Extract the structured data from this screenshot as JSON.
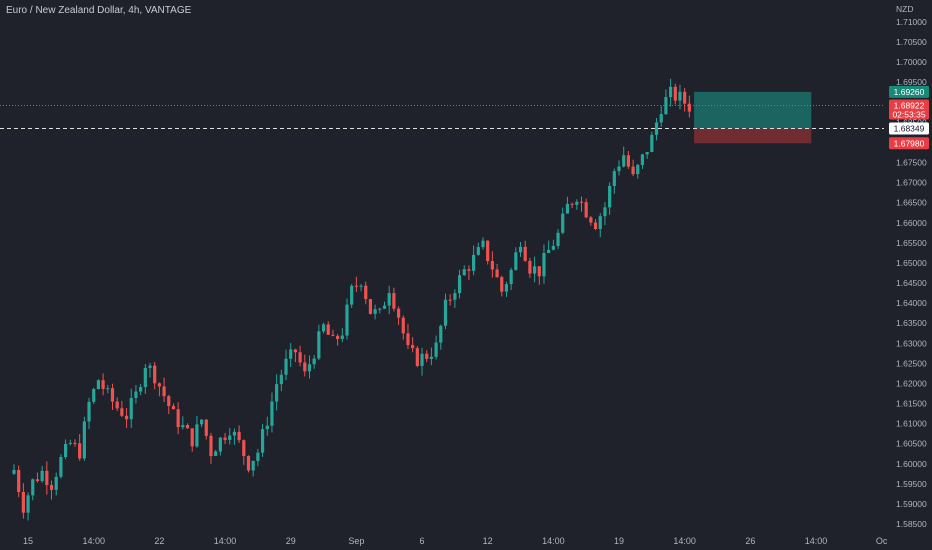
{
  "header": {
    "symbol_title": "Euro / New Zealand Dollar, 4h, VANTAGE"
  },
  "chart_data": {
    "type": "candlestick",
    "title": "Euro / New Zealand Dollar, 4h, VANTAGE",
    "currency": "NZD",
    "y_ticks": [
      1.585,
      1.59,
      1.595,
      1.6,
      1.605,
      1.61,
      1.615,
      1.62,
      1.625,
      1.63,
      1.635,
      1.64,
      1.645,
      1.65,
      1.655,
      1.66,
      1.665,
      1.67,
      1.675,
      1.68,
      1.685,
      1.69,
      1.695,
      1.7,
      1.705,
      1.71
    ],
    "y_tick_labels": [
      "1.58500",
      "1.59000",
      "1.59500",
      "1.60000",
      "1.60500",
      "1.61000",
      "1.61500",
      "1.62000",
      "1.62500",
      "1.63000",
      "1.63500",
      "1.64000",
      "1.64500",
      "1.65000",
      "1.65500",
      "1.66000",
      "1.66500",
      "1.67000",
      "1.67500",
      "1.68000",
      "1.68500",
      "1.69000",
      "1.69500",
      "1.70000",
      "1.70500",
      "1.71000"
    ],
    "x_tick_labels": [
      "15",
      "14:00",
      "22",
      "14:00",
      "29",
      "Sep",
      "6",
      "12",
      "14:00",
      "19",
      "14:00",
      "26",
      "14:00",
      "Oc"
    ],
    "x_tick_bars": [
      3,
      17,
      31,
      45,
      59,
      73,
      87,
      101,
      115,
      129,
      143,
      157,
      171,
      185
    ],
    "total_bars": 186,
    "close_path": [
      [
        0,
        1.5985
      ],
      [
        2,
        1.5895
      ],
      [
        4,
        1.5955
      ],
      [
        6,
        1.598
      ],
      [
        8,
        1.595
      ],
      [
        10,
        1.601
      ],
      [
        12,
        1.605
      ],
      [
        14,
        1.603
      ],
      [
        16,
        1.615
      ],
      [
        18,
        1.621
      ],
      [
        20,
        1.617
      ],
      [
        22,
        1.614
      ],
      [
        24,
        1.612
      ],
      [
        26,
        1.617
      ],
      [
        28,
        1.625
      ],
      [
        30,
        1.622
      ],
      [
        32,
        1.617
      ],
      [
        34,
        1.612
      ],
      [
        36,
        1.609
      ],
      [
        38,
        1.606
      ],
      [
        40,
        1.611
      ],
      [
        42,
        1.603
      ],
      [
        44,
        1.606
      ],
      [
        46,
        1.609
      ],
      [
        48,
        1.605
      ],
      [
        50,
        1.6
      ],
      [
        52,
        1.603
      ],
      [
        54,
        1.611
      ],
      [
        56,
        1.62
      ],
      [
        58,
        1.625
      ],
      [
        60,
        1.628
      ],
      [
        62,
        1.622
      ],
      [
        64,
        1.628
      ],
      [
        66,
        1.634
      ],
      [
        68,
        1.63
      ],
      [
        70,
        1.633
      ],
      [
        72,
        1.643
      ],
      [
        74,
        1.646
      ],
      [
        76,
        1.638
      ],
      [
        78,
        1.637
      ],
      [
        80,
        1.644
      ],
      [
        82,
        1.637
      ],
      [
        84,
        1.628
      ],
      [
        86,
        1.626
      ],
      [
        88,
        1.627
      ],
      [
        90,
        1.629
      ],
      [
        92,
        1.639
      ],
      [
        94,
        1.644
      ],
      [
        96,
        1.648
      ],
      [
        98,
        1.651
      ],
      [
        100,
        1.654
      ],
      [
        102,
        1.649
      ],
      [
        104,
        1.643
      ],
      [
        106,
        1.648
      ],
      [
        108,
        1.656
      ],
      [
        110,
        1.649
      ],
      [
        112,
        1.648
      ],
      [
        114,
        1.653
      ],
      [
        116,
        1.657
      ],
      [
        118,
        1.664
      ],
      [
        120,
        1.667
      ],
      [
        122,
        1.663
      ],
      [
        124,
        1.66
      ],
      [
        126,
        1.664
      ],
      [
        128,
        1.673
      ],
      [
        130,
        1.677
      ],
      [
        132,
        1.671
      ],
      [
        134,
        1.676
      ],
      [
        136,
        1.681
      ],
      [
        138,
        1.689
      ],
      [
        140,
        1.692
      ],
      [
        142,
        1.691
      ],
      [
        144,
        1.689
      ]
    ],
    "last_price": "1.68922",
    "countdown": "02:53:35",
    "position": {
      "type": "long",
      "entry_label": "1.68349",
      "target_label": "1.69260",
      "stop_label": "1.67980",
      "entry": 1.68349,
      "target": 1.6926,
      "stop": 1.6798,
      "start_bar": 145,
      "end_bar": 170
    },
    "grid": false
  },
  "colors": {
    "background": "#1f212b",
    "up": "#26a69a",
    "down": "#ef5350",
    "axis_text": "#b2b5be",
    "target_fill": "#1c6b66",
    "stop_fill": "#7a2e33",
    "target_badge": "#178a7a",
    "stop_badge": "#e53f45",
    "last_badge": "#e53f45",
    "entry_badge": "#ffffff"
  }
}
